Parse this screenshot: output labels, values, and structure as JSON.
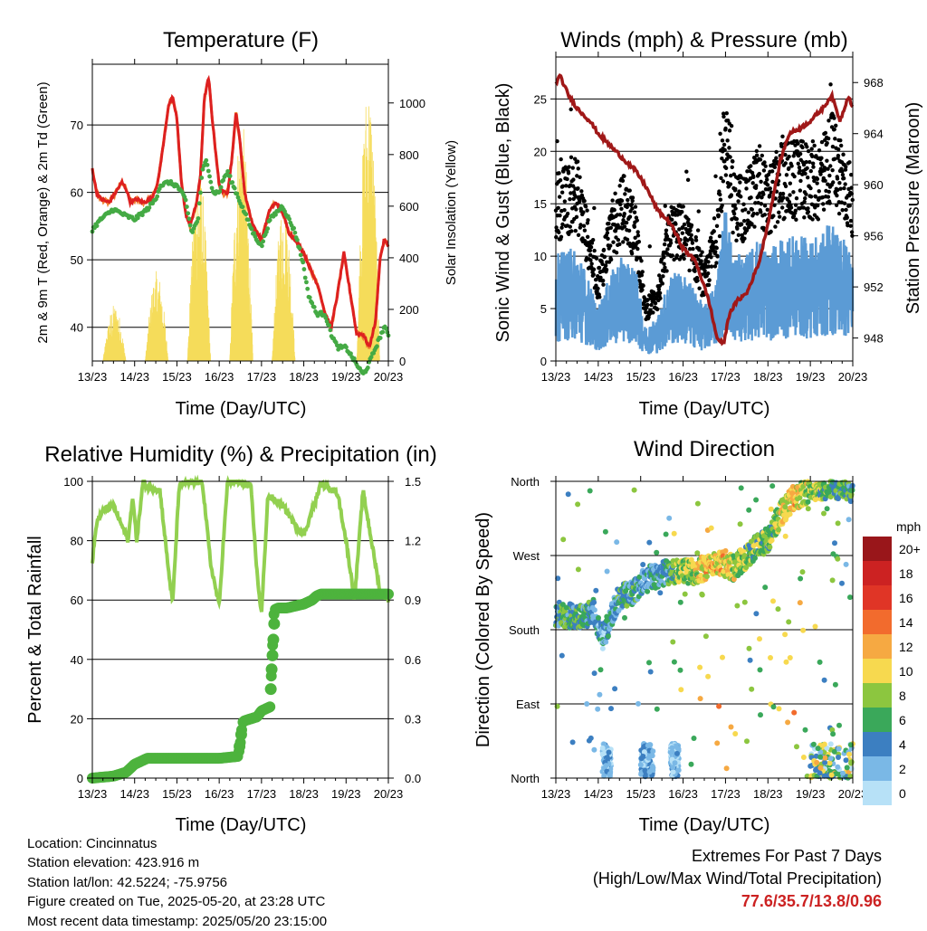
{
  "panels": {
    "temperature": {
      "title": "Temperature (F)",
      "ylabel_left": "2m & 9m T (Red, Orange) & 2m Td (Green)",
      "ylabel_right": "Solar Insolation (Yellow)",
      "xlabel": "Time (Day/UTC)"
    },
    "winds": {
      "title": "Winds (mph) & Pressure (mb)",
      "ylabel_left": "Sonic Wind & Gust (Blue, Black)",
      "ylabel_right": "Station Pressure (Maroon)",
      "xlabel": "Time (Day/UTC)"
    },
    "humidity": {
      "title": "Relative Humidity (%) & Precipitation (in)",
      "ylabel_left": "Percent & Total Rainfall",
      "xlabel": "Time (Day/UTC)"
    },
    "direction": {
      "title": "Wind Direction",
      "ylabel_left": "Direction (Colored By Speed)",
      "xlabel": "Time (Day/UTC)",
      "legend_title": "mph"
    }
  },
  "footer": {
    "location": "Location: Cincinnatus",
    "elevation": "Station elevation: 423.916 m",
    "latlon": "Station lat/lon: 42.5224; -75.9756",
    "created": "Figure created on Tue, 2025-05-20, at 23:28 UTC",
    "recent": "Most recent data timestamp: 2025/05/20 23:15:00"
  },
  "extremes": {
    "heading": "Extremes For Past 7 Days",
    "subheading": "(High/Low/Max Wind/Total Precipitation)",
    "values": "77.6/35.7/13.8/0.96"
  },
  "colors": {
    "temp_2m": "#dd2020",
    "temp_9m": "#f08030",
    "dewpoint": "#44aa44",
    "solar": "#f5dc5a",
    "wind": "#5b9bd5",
    "gust": "#000000",
    "pressure": "#a01818",
    "rh": "#92d050",
    "precip": "#4db33d"
  },
  "chart_data": [
    {
      "type": "line",
      "title": "Temperature (F)",
      "xlabel": "Time (Day/UTC)",
      "x_ticks": [
        "13/23",
        "14/23",
        "15/23",
        "16/23",
        "17/23",
        "18/23",
        "19/23",
        "20/23"
      ],
      "xlim": [
        0,
        7
      ],
      "ylim": [
        35,
        79
      ],
      "y_ticks": [
        40,
        50,
        60,
        70
      ],
      "y2lim": [
        0,
        1150
      ],
      "y2_ticks": [
        0,
        200,
        400,
        600,
        800,
        1000
      ],
      "series": [
        {
          "key": "temp_2m",
          "x": [
            0,
            0.1,
            0.2,
            0.4,
            0.55,
            0.7,
            0.8,
            0.9,
            1.05,
            1.2,
            1.4,
            1.55,
            1.7,
            1.8,
            1.9,
            2.0,
            2.1,
            2.2,
            2.3,
            2.45,
            2.55,
            2.65,
            2.75,
            2.85,
            3.0,
            3.1,
            3.2,
            3.3,
            3.4,
            3.5,
            3.6,
            3.7,
            3.8,
            4.0,
            4.2,
            4.35,
            4.5,
            4.65,
            4.8,
            5.0,
            5.2,
            5.35,
            5.5,
            5.65,
            5.8,
            5.95,
            6.1,
            6.25,
            6.4,
            6.55,
            6.7,
            6.8,
            6.9,
            7.0
          ],
          "y": [
            63.5,
            60,
            59,
            58.5,
            60,
            61.5,
            60.5,
            58.5,
            59,
            58.5,
            59,
            61.5,
            68,
            73,
            74,
            71,
            62,
            57,
            55,
            58,
            62,
            74,
            77,
            70,
            61,
            60,
            60,
            65,
            72,
            67,
            60,
            57.5,
            55,
            53,
            57.5,
            58.5,
            57,
            54,
            53,
            51,
            48,
            46,
            42,
            40,
            45,
            51,
            45,
            39,
            39,
            37,
            41,
            50,
            53,
            52
          ]
        },
        {
          "key": "dewpoint",
          "x": [
            0,
            0.2,
            0.5,
            0.8,
            1.0,
            1.3,
            1.5,
            1.6,
            1.8,
            2.0,
            2.2,
            2.35,
            2.5,
            2.6,
            2.7,
            2.85,
            3.0,
            3.1,
            3.2,
            3.4,
            3.6,
            3.8,
            4.0,
            4.2,
            4.5,
            4.8,
            5.0,
            5.1,
            5.3,
            5.5,
            5.65,
            5.8,
            6.0,
            6.2,
            6.4,
            6.5,
            6.7,
            6.9,
            7.0
          ],
          "y": [
            54.5,
            56,
            57.5,
            56.5,
            56,
            57.5,
            59,
            61,
            61.5,
            61,
            59,
            54,
            56,
            63,
            65,
            60,
            60,
            62,
            63,
            60,
            57,
            54,
            52,
            56,
            58,
            54,
            49,
            45,
            42,
            42,
            39,
            37,
            37,
            35,
            33,
            34,
            37,
            40,
            39
          ]
        }
      ]
    },
    {
      "type": "line",
      "title": "Winds (mph) & Pressure (mb)",
      "xlabel": "Time (Day/UTC)",
      "x_ticks": [
        "13/23",
        "14/23",
        "15/23",
        "16/23",
        "17/23",
        "18/23",
        "19/23",
        "20/23"
      ],
      "xlim": [
        0,
        7
      ],
      "ylim": [
        0,
        29
      ],
      "y_ticks": [
        0,
        5,
        10,
        15,
        20,
        25
      ],
      "y2lim": [
        946.2,
        970.0
      ],
      "y2_ticks": [
        948,
        952,
        956,
        960,
        964,
        968
      ],
      "series": [
        {
          "key": "pressure",
          "x": [
            0,
            0.1,
            0.3,
            0.5,
            0.8,
            1.0,
            1.3,
            1.6,
            1.9,
            2.1,
            2.4,
            2.7,
            3.0,
            3.3,
            3.6,
            3.8,
            3.95,
            4.1,
            4.3,
            4.5,
            4.8,
            5.0,
            5.3,
            5.5,
            5.8,
            6.0,
            6.3,
            6.5,
            6.7,
            6.9,
            7.0
          ],
          "y": [
            968,
            968.5,
            967,
            966,
            965,
            964,
            963,
            962,
            961,
            960,
            958,
            957,
            955,
            954,
            951,
            948,
            947.5,
            950,
            951,
            951.5,
            954,
            957,
            962,
            964,
            964.5,
            965,
            966,
            967,
            965,
            967,
            966
          ]
        }
      ]
    },
    {
      "type": "line",
      "title": "Relative Humidity (%) & Precipitation (in)",
      "xlabel": "Time (Day/UTC)",
      "x_ticks": [
        "13/23",
        "14/23",
        "15/23",
        "16/23",
        "17/23",
        "18/23",
        "19/23",
        "20/23"
      ],
      "xlim": [
        0,
        7
      ],
      "ylim": [
        0,
        100
      ],
      "y_ticks": [
        0,
        20,
        40,
        60,
        80,
        100
      ],
      "y2lim": [
        0,
        1.5
      ],
      "y2_ticks": [
        "0.0",
        "0.3",
        "0.6",
        "0.9",
        "1.2",
        "1.5"
      ],
      "series": [
        {
          "key": "rh",
          "x": [
            0,
            0.1,
            0.25,
            0.5,
            0.7,
            0.85,
            0.95,
            1.05,
            1.2,
            1.3,
            1.6,
            1.8,
            1.9,
            2.05,
            2.2,
            2.35,
            2.6,
            2.8,
            3.0,
            3.1,
            3.2,
            3.4,
            3.6,
            3.75,
            3.9,
            4.0,
            4.15,
            4.4,
            4.6,
            4.8,
            5.0,
            5.2,
            5.4,
            5.6,
            5.8,
            6.0,
            6.2,
            6.4,
            6.6,
            6.8,
            7.0
          ],
          "y": [
            73,
            86,
            90,
            92,
            85,
            80,
            95,
            80,
            100,
            98,
            97,
            70,
            59,
            98,
            100,
            99,
            100,
            72,
            58,
            80,
            100,
            100,
            99,
            98,
            68,
            55,
            95,
            93,
            90,
            85,
            82,
            90,
            99,
            98,
            96,
            80,
            60,
            97,
            80,
            63,
            60
          ]
        },
        {
          "key": "precip_in",
          "x": [
            0,
            0.5,
            0.8,
            0.9,
            1.0,
            1.1,
            1.2,
            1.3,
            1.6,
            1.8,
            2.0,
            2.5,
            3.0,
            3.45,
            3.5,
            3.55,
            3.6,
            3.9,
            4.0,
            4.1,
            4.2,
            4.3,
            4.4,
            4.6,
            4.8,
            5.0,
            5.2,
            5.3,
            5.4,
            5.6,
            6.0,
            6.5,
            7.0
          ],
          "y": [
            0,
            0.01,
            0.03,
            0.05,
            0.07,
            0.08,
            0.09,
            0.1,
            0.1,
            0.1,
            0.1,
            0.1,
            0.1,
            0.11,
            0.18,
            0.28,
            0.29,
            0.31,
            0.34,
            0.35,
            0.36,
            0.85,
            0.86,
            0.86,
            0.87,
            0.88,
            0.9,
            0.92,
            0.93,
            0.93,
            0.93,
            0.93,
            0.93
          ]
        }
      ]
    },
    {
      "type": "scatter",
      "title": "Wind Direction",
      "xlabel": "Time (Day/UTC)",
      "x_ticks": [
        "13/23",
        "14/23",
        "15/23",
        "16/23",
        "17/23",
        "18/23",
        "19/23",
        "20/23"
      ],
      "xlim": [
        0,
        7
      ],
      "y_ticks": [
        "North",
        "East",
        "South",
        "West",
        "North"
      ],
      "ylim": [
        0,
        360
      ],
      "legend": {
        "title": "mph",
        "labels": [
          "20+",
          "18",
          "16",
          "14",
          "12",
          "10",
          "8",
          "6",
          "4",
          "2",
          "0"
        ],
        "colors": [
          "#99161a",
          "#cc2222",
          "#e03526",
          "#f26b2d",
          "#f6a942",
          "#f7d94f",
          "#8cc63f",
          "#3aa85a",
          "#3c7fc1",
          "#7ab8e6",
          "#b7e1f7"
        ]
      }
    }
  ]
}
